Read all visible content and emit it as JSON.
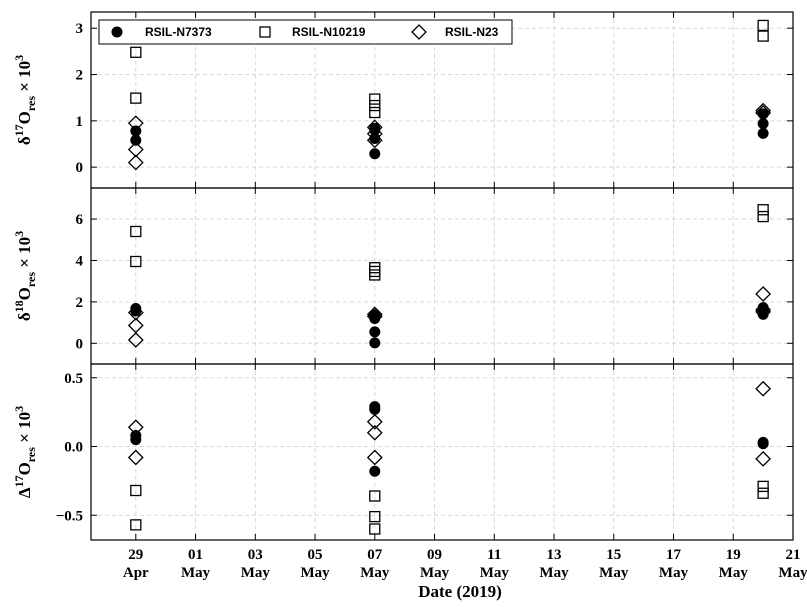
{
  "chart_data": {
    "type": "scatter",
    "xlabel": "Date (2019)",
    "x_ticks": [
      {
        "day": "29",
        "month": "Apr",
        "date": "2019-04-29"
      },
      {
        "day": "01",
        "month": "May",
        "date": "2019-05-01"
      },
      {
        "day": "03",
        "month": "May",
        "date": "2019-05-03"
      },
      {
        "day": "05",
        "month": "May",
        "date": "2019-05-05"
      },
      {
        "day": "07",
        "month": "May",
        "date": "2019-05-07"
      },
      {
        "day": "09",
        "month": "May",
        "date": "2019-05-09"
      },
      {
        "day": "11",
        "month": "May",
        "date": "2019-05-11"
      },
      {
        "day": "13",
        "month": "May",
        "date": "2019-05-13"
      },
      {
        "day": "15",
        "month": "May",
        "date": "2019-05-15"
      },
      {
        "day": "17",
        "month": "May",
        "date": "2019-05-17"
      },
      {
        "day": "19",
        "month": "May",
        "date": "2019-05-19"
      },
      {
        "day": "21",
        "month": "May",
        "date": "2019-05-21"
      }
    ],
    "xlim": [
      "2019-04-27T12:00",
      "2019-05-21T00:00"
    ],
    "grid": true,
    "legend": {
      "placement": "top-left",
      "entries": [
        {
          "name": "RSIL-N7373",
          "marker": "filled-circle"
        },
        {
          "name": "RSIL-N10219",
          "marker": "open-square"
        },
        {
          "name": "RSIL-N23",
          "marker": "open-diamond"
        }
      ]
    },
    "panels": [
      {
        "ylabel": {
          "prefix": "δ",
          "sup": "17",
          "main": "O",
          "sub": "res",
          "suffix": " × 10",
          "exp": "3"
        },
        "ylim": [
          -0.45,
          3.35
        ],
        "yticks": [
          {
            "v": 0,
            "label": "0"
          },
          {
            "v": 1,
            "label": "1"
          },
          {
            "v": 2,
            "label": "2"
          },
          {
            "v": 3,
            "label": "3"
          }
        ],
        "series": [
          {
            "name": "RSIL-N7373",
            "points": [
              {
                "date": "2019-04-29",
                "y": 0.78
              },
              {
                "date": "2019-04-29",
                "y": 0.58
              },
              {
                "date": "2019-05-07",
                "y": 0.29
              },
              {
                "date": "2019-05-07",
                "y": 0.62
              },
              {
                "date": "2019-05-07",
                "y": 0.8
              },
              {
                "date": "2019-05-07",
                "y": 0.84
              },
              {
                "date": "2019-05-20",
                "y": 0.73
              },
              {
                "date": "2019-05-20",
                "y": 0.94
              },
              {
                "date": "2019-05-20",
                "y": 1.15
              }
            ]
          },
          {
            "name": "RSIL-N10219",
            "points": [
              {
                "date": "2019-04-29",
                "y": 2.48
              },
              {
                "date": "2019-04-29",
                "y": 1.49
              },
              {
                "date": "2019-05-07",
                "y": 1.47
              },
              {
                "date": "2019-05-07",
                "y": 1.33
              },
              {
                "date": "2019-05-07",
                "y": 1.18
              },
              {
                "date": "2019-05-20",
                "y": 3.06
              },
              {
                "date": "2019-05-20",
                "y": 2.83
              }
            ]
          },
          {
            "name": "RSIL-N23",
            "points": [
              {
                "date": "2019-04-29",
                "y": 0.95
              },
              {
                "date": "2019-04-29",
                "y": 0.38
              },
              {
                "date": "2019-04-29",
                "y": 0.1
              },
              {
                "date": "2019-05-07",
                "y": 0.86
              },
              {
                "date": "2019-05-07",
                "y": 0.72
              },
              {
                "date": "2019-05-07",
                "y": 0.58
              },
              {
                "date": "2019-05-20",
                "y": 1.22
              },
              {
                "date": "2019-05-20",
                "y": 1.17
              }
            ]
          }
        ]
      },
      {
        "ylabel": {
          "prefix": "δ",
          "sup": "18",
          "main": "O",
          "sub": "res",
          "suffix": " × 10",
          "exp": "3"
        },
        "ylim": [
          -1.0,
          7.5
        ],
        "yticks": [
          {
            "v": 0,
            "label": "0"
          },
          {
            "v": 2,
            "label": "2"
          },
          {
            "v": 4,
            "label": "4"
          },
          {
            "v": 6,
            "label": "6"
          }
        ],
        "series": [
          {
            "name": "RSIL-N7373",
            "points": [
              {
                "date": "2019-04-29",
                "y": 1.68
              },
              {
                "date": "2019-04-29",
                "y": 1.56
              },
              {
                "date": "2019-05-07",
                "y": 1.35
              },
              {
                "date": "2019-05-07",
                "y": 1.2
              },
              {
                "date": "2019-05-07",
                "y": 0.55
              },
              {
                "date": "2019-05-07",
                "y": 0.02
              },
              {
                "date": "2019-05-20",
                "y": 1.72
              },
              {
                "date": "2019-05-20",
                "y": 1.58
              },
              {
                "date": "2019-05-20",
                "y": 1.4
              }
            ]
          },
          {
            "name": "RSIL-N10219",
            "points": [
              {
                "date": "2019-04-29",
                "y": 5.4
              },
              {
                "date": "2019-04-29",
                "y": 3.95
              },
              {
                "date": "2019-05-07",
                "y": 3.65
              },
              {
                "date": "2019-05-07",
                "y": 3.47
              },
              {
                "date": "2019-05-07",
                "y": 3.3
              },
              {
                "date": "2019-05-20",
                "y": 6.45
              },
              {
                "date": "2019-05-20",
                "y": 6.12
              }
            ]
          },
          {
            "name": "RSIL-N23",
            "points": [
              {
                "date": "2019-04-29",
                "y": 1.48
              },
              {
                "date": "2019-04-29",
                "y": 0.86
              },
              {
                "date": "2019-04-29",
                "y": 0.16
              },
              {
                "date": "2019-05-07",
                "y": 1.4
              },
              {
                "date": "2019-05-07",
                "y": 1.3
              },
              {
                "date": "2019-05-20",
                "y": 2.38
              },
              {
                "date": "2019-05-20",
                "y": 1.62
              },
              {
                "date": "2019-05-20",
                "y": 1.52
              }
            ]
          }
        ]
      },
      {
        "ylabel": {
          "prefix": "Δ",
          "sup": "17",
          "main": "O",
          "sub": "res",
          "suffix": " × 10",
          "exp": "3"
        },
        "ylim": [
          -0.68,
          0.6
        ],
        "yticks": [
          {
            "v": -0.5,
            "label": "−0.5"
          },
          {
            "v": 0.0,
            "label": "0.0"
          },
          {
            "v": 0.5,
            "label": "0.5"
          }
        ],
        "series": [
          {
            "name": "RSIL-N7373",
            "points": [
              {
                "date": "2019-04-29",
                "y": 0.08
              },
              {
                "date": "2019-04-29",
                "y": 0.05
              },
              {
                "date": "2019-05-07",
                "y": 0.29
              },
              {
                "date": "2019-05-07",
                "y": 0.27
              },
              {
                "date": "2019-05-07",
                "y": -0.18
              },
              {
                "date": "2019-05-20",
                "y": 0.03
              },
              {
                "date": "2019-05-20",
                "y": 0.02
              }
            ]
          },
          {
            "name": "RSIL-N10219",
            "points": [
              {
                "date": "2019-04-29",
                "y": -0.32
              },
              {
                "date": "2019-04-29",
                "y": -0.57
              },
              {
                "date": "2019-05-07",
                "y": -0.36
              },
              {
                "date": "2019-05-07",
                "y": -0.51
              },
              {
                "date": "2019-05-07",
                "y": -0.6
              },
              {
                "date": "2019-05-20",
                "y": -0.29
              },
              {
                "date": "2019-05-20",
                "y": -0.34
              }
            ]
          },
          {
            "name": "RSIL-N23",
            "points": [
              {
                "date": "2019-04-29",
                "y": 0.14
              },
              {
                "date": "2019-04-29",
                "y": -0.08
              },
              {
                "date": "2019-05-07",
                "y": 0.18
              },
              {
                "date": "2019-05-07",
                "y": 0.1
              },
              {
                "date": "2019-05-07",
                "y": -0.08
              },
              {
                "date": "2019-05-20",
                "y": 0.42
              },
              {
                "date": "2019-05-20",
                "y": -0.09
              }
            ]
          }
        ]
      }
    ]
  }
}
